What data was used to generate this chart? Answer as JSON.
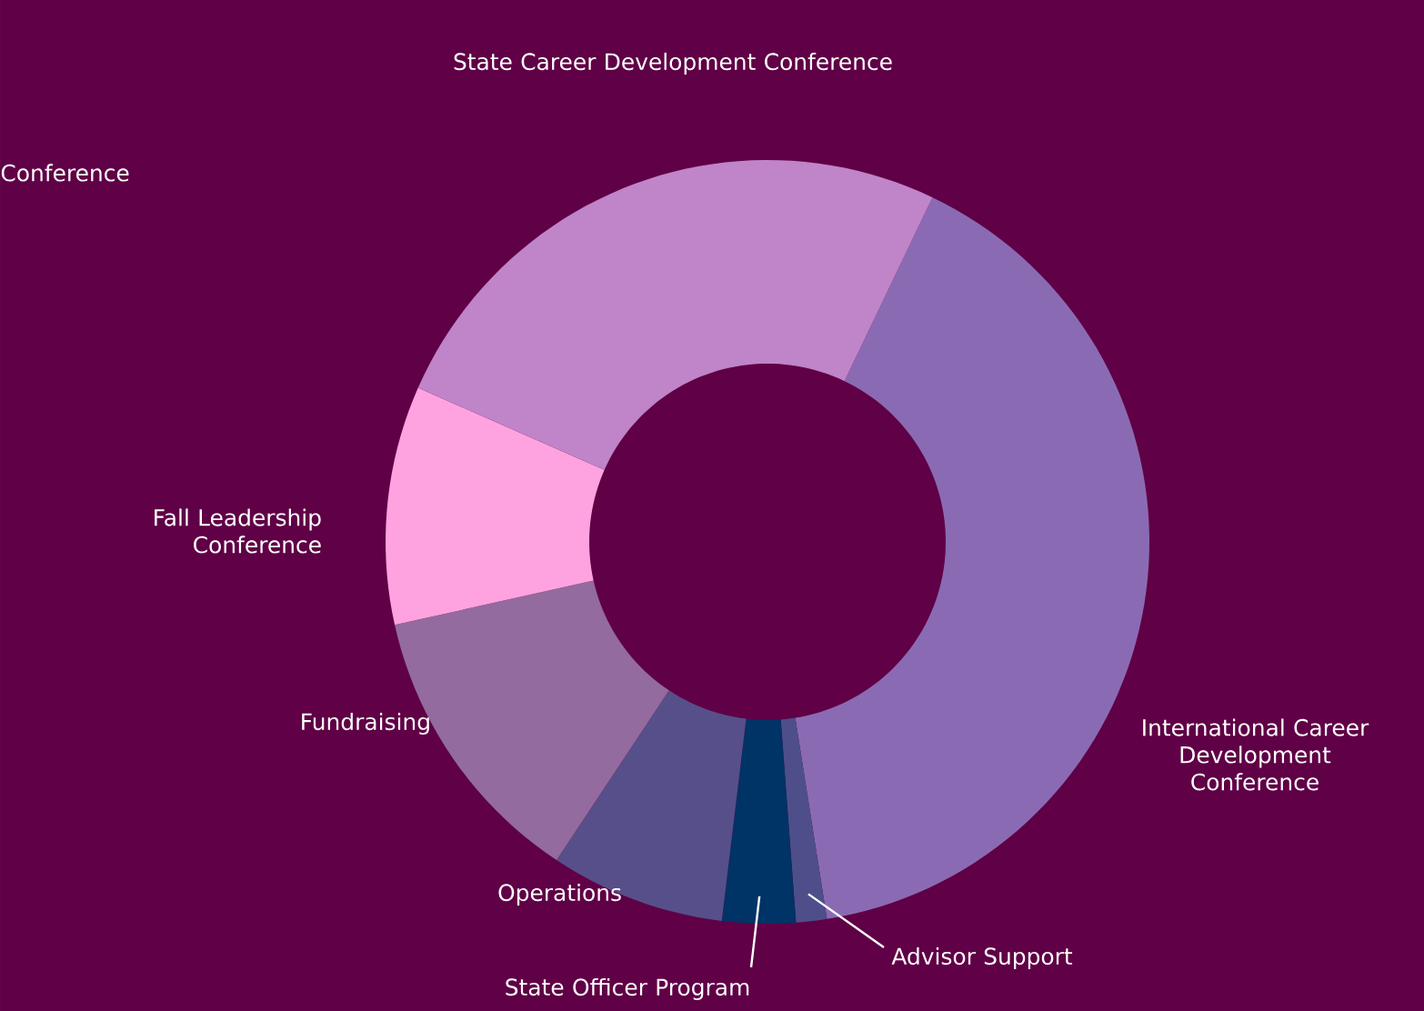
{
  "chart_data": {
    "type": "donut",
    "categories": [
      "International Career Development Conference",
      "Advisor Support",
      "State Officer Program",
      "Operations",
      "Fundraising",
      "Fall Leadership Conference",
      "State Career Development Conference"
    ],
    "values": [
      40.4,
      1.3,
      3.1,
      7.4,
      12.2,
      10.1,
      25.5
    ],
    "colors": [
      "#8a6bb3",
      "#4e4f8a",
      "#003366",
      "#574f8a",
      "#936b9e",
      "#ffa3e0",
      "#c084c8"
    ],
    "annotations": [
      "Conference"
    ]
  }
}
